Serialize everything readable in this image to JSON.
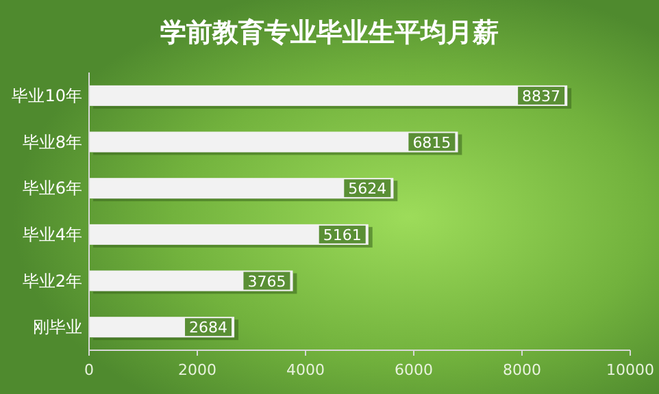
{
  "chart_data": {
    "type": "bar",
    "orientation": "horizontal",
    "title": "学前教育专业毕业生平均月薪",
    "categories": [
      "毕业10年",
      "毕业8年",
      "毕业6年",
      "毕业4年",
      "毕业2年",
      "刚毕业"
    ],
    "values": [
      8837,
      6815,
      5624,
      5161,
      3765,
      2684
    ],
    "color": "#f2f2f2",
    "xlim": [
      0,
      10000
    ],
    "xticks": [
      0,
      2000,
      4000,
      6000,
      8000,
      10000
    ],
    "data_labels": true,
    "grid": false
  }
}
